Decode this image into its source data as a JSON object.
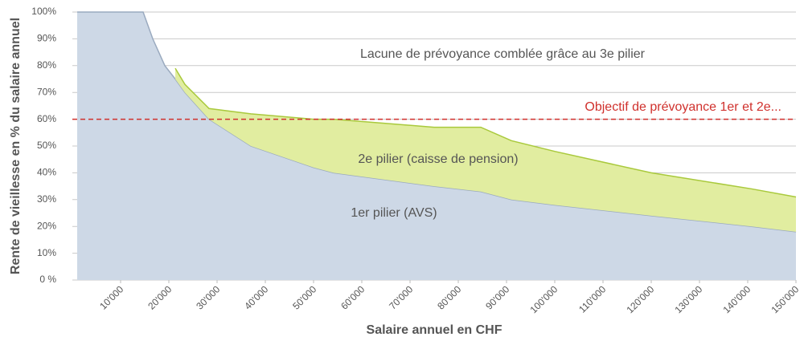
{
  "chart_data": {
    "type": "stacked-area",
    "y_axis_label": "Rente de vieillesse en % du salaire annuel",
    "x_axis_label": "Salaire annuel en CHF",
    "x": [
      1000,
      14667,
      16667,
      19167,
      21333,
      23333,
      28333,
      37000,
      50000,
      54167,
      75000,
      84667,
      91000,
      100000,
      120000,
      140833,
      150000
    ],
    "series": [
      {
        "name": "1er pilier (AVS)",
        "color": "#cdd8e6",
        "line_color": "#9aaabf",
        "values": [
          100,
          100,
          90,
          80,
          75,
          70,
          60,
          50,
          42,
          40,
          35,
          33,
          30,
          28,
          24,
          20,
          18
        ]
      },
      {
        "name": "2e pilier (caisse de pension)",
        "color": "#e1eda0",
        "line_color": "#a9c93c",
        "values": [
          null,
          null,
          null,
          null,
          4,
          3,
          4,
          12,
          18,
          20,
          22,
          24,
          22,
          20,
          16,
          14,
          13
        ]
      }
    ],
    "annotation": "Lacune de prévoyance comblée grâce au 3e pilier",
    "target_line": {
      "value": 60,
      "label": "Objectif de prévoyance 1er et 2e...",
      "color": "#d0312d"
    },
    "xlim": [
      0,
      150000
    ],
    "ylim": [
      0,
      100
    ],
    "xticks": [
      {
        "value": 10000,
        "label": "10'000"
      },
      {
        "value": 20000,
        "label": "20'000"
      },
      {
        "value": 30000,
        "label": "30'000"
      },
      {
        "value": 40000,
        "label": "40'000"
      },
      {
        "value": 50000,
        "label": "50'000"
      },
      {
        "value": 60000,
        "label": "60'000"
      },
      {
        "value": 70000,
        "label": "70'000"
      },
      {
        "value": 80000,
        "label": "80'000"
      },
      {
        "value": 90000,
        "label": "90'000"
      },
      {
        "value": 100000,
        "label": "100'000"
      },
      {
        "value": 110000,
        "label": "110'000"
      },
      {
        "value": 120000,
        "label": "120'000"
      },
      {
        "value": 130000,
        "label": "130'000"
      },
      {
        "value": 140000,
        "label": "140'000"
      },
      {
        "value": 150000,
        "label": "150'000"
      }
    ],
    "yticks": [
      {
        "value": 0,
        "label": "0 %"
      },
      {
        "value": 10,
        "label": "10%"
      },
      {
        "value": 20,
        "label": "20%"
      },
      {
        "value": 30,
        "label": "30%"
      },
      {
        "value": 40,
        "label": "40%"
      },
      {
        "value": 50,
        "label": "50%"
      },
      {
        "value": 60,
        "label": "60%"
      },
      {
        "value": 70,
        "label": "70%"
      },
      {
        "value": 80,
        "label": "80%"
      },
      {
        "value": 90,
        "label": "90%"
      },
      {
        "value": 100,
        "label": "100%"
      }
    ],
    "grid": true
  }
}
